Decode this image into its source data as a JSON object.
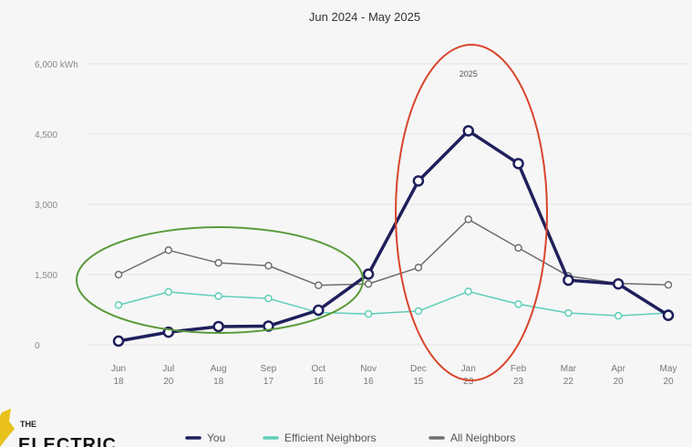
{
  "chart_data": {
    "type": "line",
    "title": "Jun 2024 - May 2025",
    "ylabel": "",
    "xlabel": "",
    "ylim": [
      0,
      6000
    ],
    "yticks": [
      {
        "value": 0,
        "label": "0"
      },
      {
        "value": 1500,
        "label": "1,500"
      },
      {
        "value": 3000,
        "label": "3,000"
      },
      {
        "value": 4500,
        "label": "4,500"
      },
      {
        "value": 6000,
        "label": "6,000 kWh"
      }
    ],
    "categories": [
      {
        "month": "Jun",
        "day": "18"
      },
      {
        "month": "Jul",
        "day": "20"
      },
      {
        "month": "Aug",
        "day": "18"
      },
      {
        "month": "Sep",
        "day": "17"
      },
      {
        "month": "Oct",
        "day": "16"
      },
      {
        "month": "Nov",
        "day": "16"
      },
      {
        "month": "Dec",
        "day": "15"
      },
      {
        "month": "Jan",
        "day": "23"
      },
      {
        "month": "Feb",
        "day": "23"
      },
      {
        "month": "Mar",
        "day": "22"
      },
      {
        "month": "Apr",
        "day": "20"
      },
      {
        "month": "May",
        "day": "20"
      }
    ],
    "series": [
      {
        "name": "You",
        "color": "#1f1f5c",
        "values": [
          80,
          270,
          390,
          400,
          740,
          1510,
          3500,
          4570,
          3870,
          1380,
          1300,
          630
        ]
      },
      {
        "name": "Efficient Neighbors",
        "color": "#5fcfb8",
        "values": [
          850,
          1130,
          1040,
          990,
          690,
          660,
          720,
          1140,
          870,
          680,
          620,
          680
        ]
      },
      {
        "name": "All Neighbors",
        "color": "#6e6e6e",
        "values": [
          1500,
          2020,
          1750,
          1690,
          1270,
          1300,
          1650,
          2680,
          2070,
          1470,
          1310,
          1280
        ]
      }
    ],
    "annotations": [
      {
        "category_index": 7,
        "text": "2025"
      }
    ],
    "grid": true,
    "legend": "bottom"
  },
  "brand": {
    "line1": "THE",
    "line2": "ELECTRIC"
  },
  "colors": {
    "green_ellipse": "#5a9a3a",
    "red_ellipse": "#d9442b",
    "logo": "#e8c21a"
  }
}
